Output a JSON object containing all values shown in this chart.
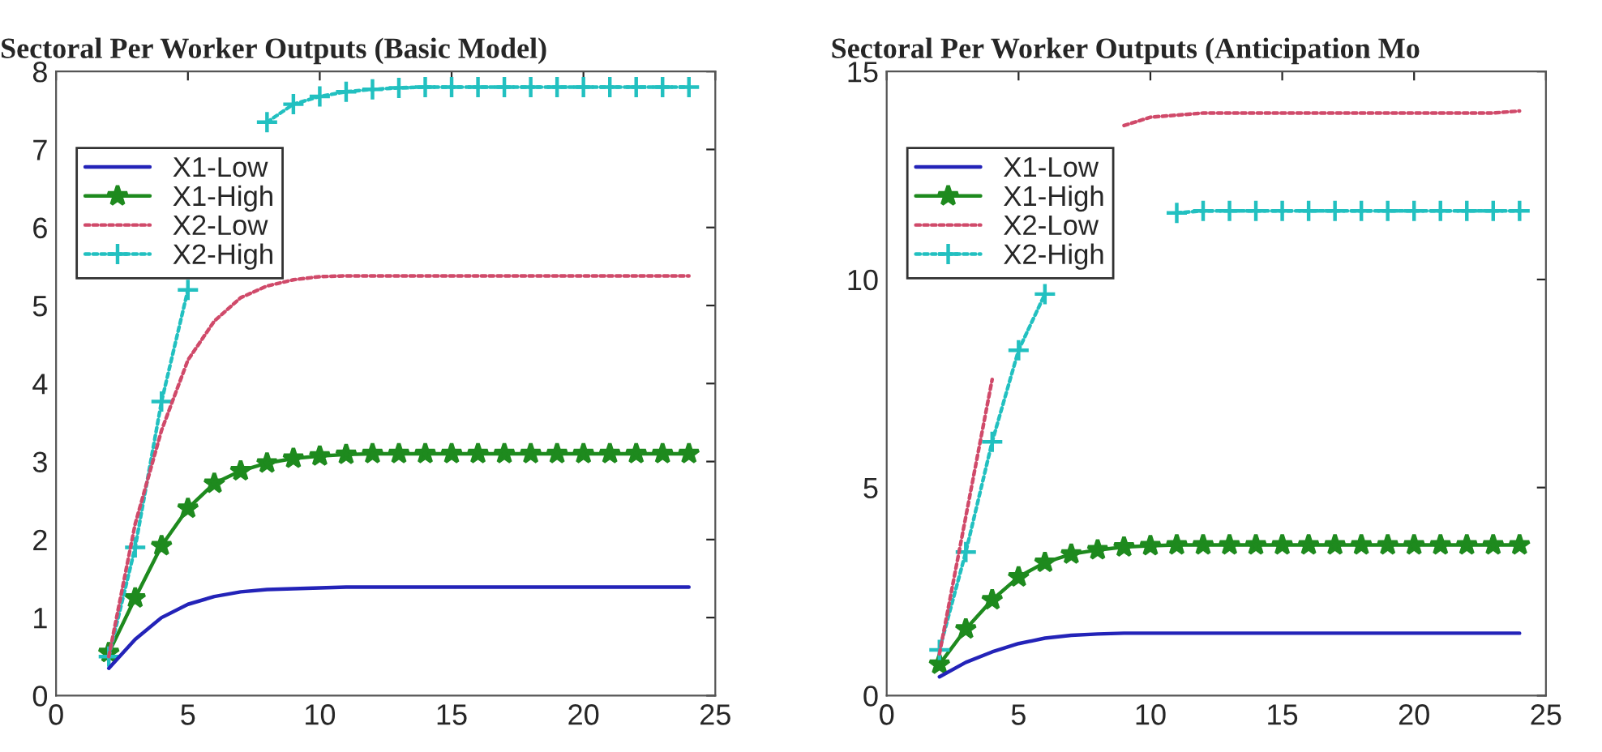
{
  "chart_data": [
    {
      "type": "line",
      "title": "Sectoral Per Worker Outputs (Basic Model)",
      "x": [
        2,
        3,
        4,
        5,
        6,
        7,
        8,
        9,
        10,
        11,
        12,
        13,
        14,
        15,
        16,
        17,
        18,
        19,
        20,
        21,
        22,
        23,
        24
      ],
      "xlim": [
        0,
        25
      ],
      "xticks": [
        0,
        5,
        10,
        15,
        20,
        25
      ],
      "ylim": [
        0,
        8
      ],
      "yticks": [
        0,
        1,
        2,
        3,
        4,
        5,
        6,
        7,
        8
      ],
      "grid": false,
      "legend": "top left",
      "series": [
        {
          "name": "X1-Low",
          "color": "#2323b8",
          "line_style": "solid",
          "marker": "none",
          "values": [
            0.35,
            0.72,
            1.0,
            1.17,
            1.27,
            1.33,
            1.36,
            1.37,
            1.38,
            1.39,
            1.39,
            1.39,
            1.39,
            1.39,
            1.39,
            1.39,
            1.39,
            1.39,
            1.39,
            1.39,
            1.39,
            1.39,
            1.39
          ]
        },
        {
          "name": "X1-High",
          "color": "#1e8a1e",
          "line_style": "solid",
          "marker": "star",
          "values": [
            0.55,
            1.25,
            1.92,
            2.4,
            2.72,
            2.88,
            2.98,
            3.04,
            3.07,
            3.09,
            3.1,
            3.1,
            3.1,
            3.1,
            3.1,
            3.1,
            3.1,
            3.1,
            3.1,
            3.1,
            3.1,
            3.1,
            3.1
          ]
        },
        {
          "name": "X2-Low",
          "color": "#d04a6a",
          "line_style": "dotted",
          "marker": "none",
          "values": [
            0.5,
            2.2,
            3.4,
            4.3,
            4.8,
            5.1,
            5.25,
            5.33,
            5.37,
            5.38,
            5.38,
            5.38,
            5.38,
            5.38,
            5.38,
            5.38,
            5.38,
            5.38,
            5.38,
            5.38,
            5.38,
            5.38,
            5.38
          ]
        },
        {
          "name": "X2-High",
          "color": "#22c0c0",
          "line_style": "dotted",
          "marker": "cross",
          "values": [
            0.5,
            1.9,
            3.77,
            5.2,
            null,
            null,
            7.35,
            7.58,
            7.68,
            7.74,
            7.77,
            7.79,
            7.8,
            7.8,
            7.8,
            7.8,
            7.8,
            7.8,
            7.8,
            7.8,
            7.8,
            7.8,
            7.8
          ]
        }
      ]
    },
    {
      "type": "line",
      "title": "Sectoral Per Worker Outputs (Anticipation Mo",
      "x": [
        2,
        3,
        4,
        5,
        6,
        7,
        8,
        9,
        10,
        11,
        12,
        13,
        14,
        15,
        16,
        17,
        18,
        19,
        20,
        21,
        22,
        23,
        24
      ],
      "xlim": [
        0,
        25
      ],
      "xticks": [
        0,
        5,
        10,
        15,
        20,
        25
      ],
      "ylim": [
        0,
        15
      ],
      "yticks": [
        0,
        5,
        10,
        15
      ],
      "grid": false,
      "legend": "top left",
      "series": [
        {
          "name": "X1-Low",
          "color": "#2323b8",
          "line_style": "solid",
          "marker": "none",
          "values": [
            0.45,
            0.8,
            1.05,
            1.25,
            1.38,
            1.45,
            1.48,
            1.5,
            1.5,
            1.5,
            1.5,
            1.5,
            1.5,
            1.5,
            1.5,
            1.5,
            1.5,
            1.5,
            1.5,
            1.5,
            1.5,
            1.5,
            1.5
          ]
        },
        {
          "name": "X1-High",
          "color": "#1e8a1e",
          "line_style": "solid",
          "marker": "star",
          "values": [
            0.75,
            1.6,
            2.3,
            2.85,
            3.2,
            3.4,
            3.5,
            3.57,
            3.6,
            3.62,
            3.62,
            3.62,
            3.62,
            3.62,
            3.62,
            3.62,
            3.62,
            3.62,
            3.62,
            3.62,
            3.62,
            3.62,
            3.62
          ]
        },
        {
          "name": "X2-Low",
          "color": "#d04a6a",
          "line_style": "dotted",
          "marker": "none",
          "values": [
            1.0,
            4.3,
            7.6,
            null,
            null,
            null,
            null,
            13.7,
            13.9,
            13.95,
            14.0,
            14.0,
            14.0,
            14.0,
            14.0,
            14.0,
            14.0,
            14.0,
            14.0,
            14.0,
            14.0,
            14.0,
            14.05
          ]
        },
        {
          "name": "X2-High",
          "color": "#22c0c0",
          "line_style": "dotted",
          "marker": "cross",
          "values": [
            1.1,
            3.45,
            6.1,
            8.3,
            9.65,
            null,
            null,
            null,
            null,
            11.6,
            11.65,
            11.65,
            11.65,
            11.65,
            11.65,
            11.65,
            11.65,
            11.65,
            11.65,
            11.65,
            11.65,
            11.65,
            11.65
          ]
        }
      ]
    }
  ]
}
